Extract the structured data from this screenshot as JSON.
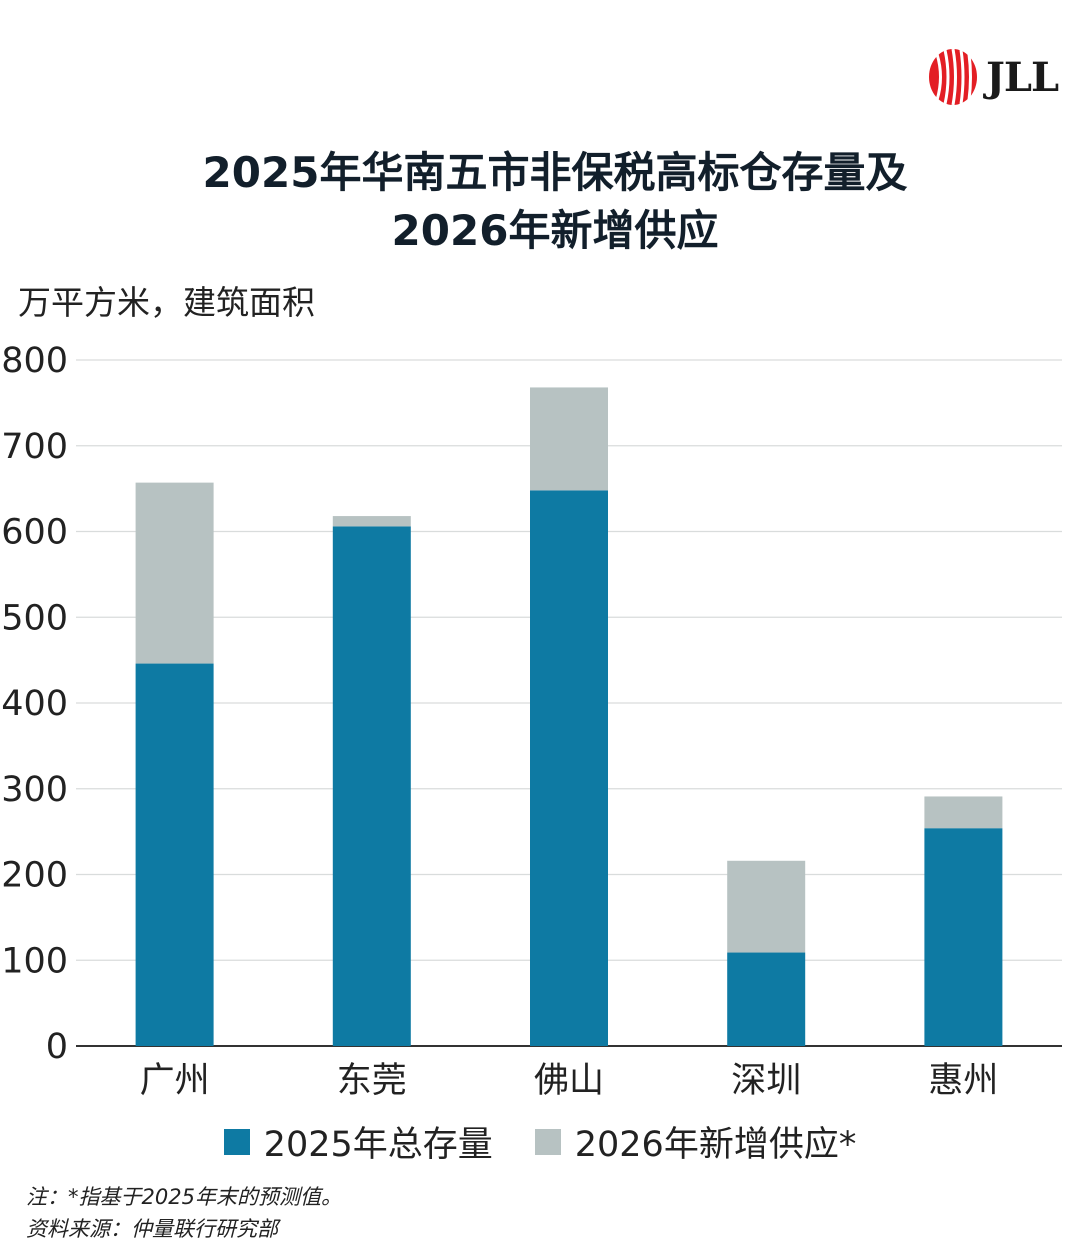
{
  "brand": {
    "logo_text": "JLL",
    "logo_color": "#e31e24"
  },
  "title_line1": "2025年华南五市非保税高标仓存量及",
  "title_line2": "2026年新增供应",
  "unit_label": "万平方米，建筑面积",
  "chart_data": {
    "type": "bar",
    "stacked": true,
    "title": "2025年华南五市非保税高标仓存量及2026年新增供应",
    "ylabel": "万平方米，建筑面积",
    "xlabel": "",
    "categories": [
      "广州",
      "东莞",
      "佛山",
      "深圳",
      "惠州"
    ],
    "series": [
      {
        "name": "2025年总存量",
        "color": "#0e7aa3",
        "values": [
          446,
          606,
          648,
          109,
          254
        ]
      },
      {
        "name": "2026年新增供应*",
        "color": "#b7c2c2",
        "values": [
          211,
          12,
          120,
          107,
          37
        ]
      }
    ],
    "ylim": [
      0,
      800
    ],
    "yticks": [
      "0",
      "100",
      "200",
      "300",
      "400",
      "500",
      "600",
      "700",
      "800"
    ],
    "grid": true,
    "legend_position": "bottom"
  },
  "notes": {
    "note_line": "注：*指基于2025年末的预测值。",
    "source_line": "资料来源：仲量联行研究部"
  }
}
